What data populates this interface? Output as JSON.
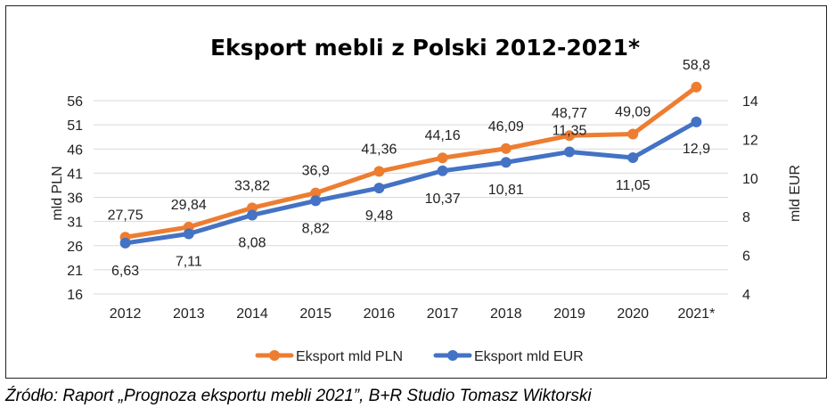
{
  "chart_data": {
    "type": "line",
    "title": "Eksport mebli z Polski 2012-2021*",
    "categories": [
      "2012",
      "2013",
      "2014",
      "2015",
      "2016",
      "2017",
      "2018",
      "2019",
      "2020",
      "2021*"
    ],
    "ylabel": "mld PLN",
    "y2label": "mld EUR",
    "ylim": [
      16,
      56
    ],
    "y2lim": [
      4,
      14
    ],
    "yticks": [
      "16",
      "21",
      "26",
      "31",
      "36",
      "41",
      "46",
      "51",
      "56"
    ],
    "y2ticks": [
      "4",
      "6",
      "8",
      "10",
      "12",
      "14"
    ],
    "grid": "horizontal",
    "legend_position": "bottom",
    "series": [
      {
        "name": "Eksport mld PLN",
        "axis": "left",
        "color": "#ED7D31",
        "values": [
          27.75,
          29.84,
          33.82,
          36.9,
          41.36,
          44.16,
          46.09,
          48.77,
          49.09,
          58.8
        ],
        "labels": [
          "27,75",
          "29,84",
          "33,82",
          "36,9",
          "41,36",
          "44,16",
          "46,09",
          "48,77",
          "49,09",
          "58,8"
        ]
      },
      {
        "name": "Eksport mld EUR",
        "axis": "right",
        "color": "#4472C4",
        "values": [
          6.63,
          7.11,
          8.08,
          8.82,
          9.48,
          10.37,
          10.81,
          11.35,
          11.05,
          12.9
        ],
        "labels": [
          "6,63",
          "7,11",
          "8,08",
          "8,82",
          "9,48",
          "10,37",
          "10,81",
          "11,35",
          "11,05",
          "12,9"
        ]
      }
    ]
  },
  "source": "Źródło: Raport „Prognoza eksportu mebli 2021”, B+R Studio Tomasz Wiktorski"
}
